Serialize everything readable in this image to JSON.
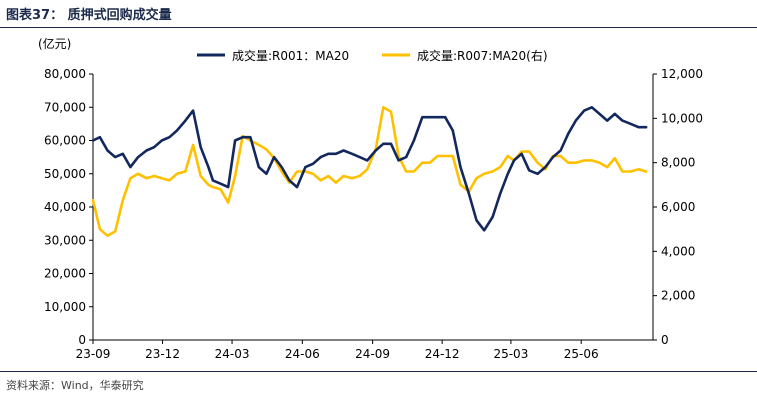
{
  "header": {
    "title": "图表37： 质押式回购成交量"
  },
  "footer": {
    "source": "资料来源：Wind，华泰研究"
  },
  "chart_data": {
    "type": "line",
    "y_left_unit": "(亿元)",
    "x_ticks": [
      "23-09",
      "23-12",
      "24-03",
      "24-06",
      "24-09",
      "24-12",
      "25-03",
      "25-06"
    ],
    "y_left": {
      "min": 0,
      "max": 80000,
      "ticks": [
        "0",
        "10,000",
        "20,000",
        "30,000",
        "40,000",
        "50,000",
        "60,000",
        "70,000",
        "80,000"
      ]
    },
    "y_right": {
      "min": 0,
      "max": 12000,
      "ticks": [
        "0",
        "2,000",
        "4,000",
        "6,000",
        "8,000",
        "10,000",
        "12,000"
      ]
    },
    "legend_position": "top",
    "series": [
      {
        "name": "成交量:R001：MA20",
        "axis": "left",
        "color": "#13285c",
        "x": [
          "2023-09-01",
          "2023-09-10",
          "2023-09-20",
          "2023-09-30",
          "2023-10-10",
          "2023-10-20",
          "2023-10-30",
          "2023-11-10",
          "2023-11-20",
          "2023-11-30",
          "2023-12-10",
          "2023-12-20",
          "2023-12-31",
          "2024-01-10",
          "2024-01-20",
          "2024-01-30",
          "2024-02-05",
          "2024-02-15",
          "2024-02-25",
          "2024-03-05",
          "2024-03-15",
          "2024-03-25",
          "2024-04-05",
          "2024-04-15",
          "2024-04-25",
          "2024-05-05",
          "2024-05-15",
          "2024-05-25",
          "2024-06-05",
          "2024-06-15",
          "2024-06-25",
          "2024-07-05",
          "2024-07-15",
          "2024-07-25",
          "2024-08-05",
          "2024-08-15",
          "2024-08-25",
          "2024-09-05",
          "2024-09-15",
          "2024-09-25",
          "2024-10-05",
          "2024-10-15",
          "2024-10-25",
          "2024-11-05",
          "2024-11-15",
          "2024-11-25",
          "2024-12-05",
          "2024-12-15",
          "2024-12-25",
          "2025-01-05",
          "2025-01-15",
          "2025-01-25",
          "2025-02-05",
          "2025-02-15",
          "2025-02-25",
          "2025-03-05",
          "2025-03-15",
          "2025-03-25",
          "2025-04-05",
          "2025-04-15",
          "2025-04-25",
          "2025-05-05",
          "2025-05-15",
          "2025-05-25",
          "2025-06-05",
          "2025-06-15",
          "2025-06-25",
          "2025-07-05",
          "2025-07-15",
          "2025-07-25",
          "2025-08-05",
          "2025-08-15",
          "2025-08-25"
        ],
        "values": [
          60000,
          61000,
          57000,
          55000,
          56000,
          52000,
          55000,
          57000,
          58000,
          60000,
          61000,
          63000,
          66000,
          69000,
          58000,
          52000,
          48000,
          47000,
          46000,
          60000,
          61000,
          61000,
          52000,
          50000,
          55000,
          52000,
          48000,
          46000,
          52000,
          53000,
          55000,
          56000,
          56000,
          57000,
          56000,
          55000,
          54000,
          57000,
          59000,
          59000,
          54000,
          55000,
          60000,
          67000,
          67000,
          67000,
          67000,
          63000,
          52000,
          44000,
          36000,
          33000,
          37000,
          44000,
          50000,
          54000,
          56000,
          51000,
          50000,
          52000,
          55000,
          57000,
          62000,
          66000,
          69000,
          70000,
          68000,
          66000,
          68000,
          66000,
          65000,
          64000,
          64000
        ]
      },
      {
        "name": "成交量:R007:MA20(右)",
        "axis": "right",
        "color": "#ffc000",
        "x": [
          "2023-09-01",
          "2023-09-10",
          "2023-09-20",
          "2023-09-30",
          "2023-10-10",
          "2023-10-20",
          "2023-10-30",
          "2023-11-10",
          "2023-11-20",
          "2023-11-30",
          "2023-12-10",
          "2023-12-20",
          "2023-12-31",
          "2024-01-10",
          "2024-01-20",
          "2024-01-30",
          "2024-02-05",
          "2024-02-15",
          "2024-02-25",
          "2024-03-05",
          "2024-03-15",
          "2024-03-25",
          "2024-04-05",
          "2024-04-15",
          "2024-04-25",
          "2024-05-05",
          "2024-05-15",
          "2024-05-25",
          "2024-06-05",
          "2024-06-15",
          "2024-06-25",
          "2024-07-05",
          "2024-07-15",
          "2024-07-25",
          "2024-08-05",
          "2024-08-15",
          "2024-08-25",
          "2024-09-05",
          "2024-09-15",
          "2024-09-25",
          "2024-10-05",
          "2024-10-15",
          "2024-10-25",
          "2024-11-05",
          "2024-11-15",
          "2024-11-25",
          "2024-12-05",
          "2024-12-15",
          "2024-12-25",
          "2025-01-05",
          "2025-01-15",
          "2025-01-25",
          "2025-02-05",
          "2025-02-15",
          "2025-02-25",
          "2025-03-05",
          "2025-03-15",
          "2025-03-25",
          "2025-04-05",
          "2025-04-15",
          "2025-04-25",
          "2025-05-05",
          "2025-05-15",
          "2025-05-25",
          "2025-06-05",
          "2025-06-15",
          "2025-06-25",
          "2025-07-05",
          "2025-07-15",
          "2025-07-25",
          "2025-08-05",
          "2025-08-15",
          "2025-08-25"
        ],
        "values": [
          6300,
          5000,
          4700,
          4900,
          6300,
          7300,
          7500,
          7300,
          7400,
          7300,
          7200,
          7500,
          7600,
          8800,
          7400,
          7000,
          6900,
          6800,
          6200,
          7400,
          9200,
          9000,
          8800,
          8600,
          8200,
          7600,
          7100,
          7600,
          7600,
          7500,
          7200,
          7400,
          7100,
          7400,
          7300,
          7400,
          7700,
          8600,
          10500,
          10300,
          8300,
          7600,
          7600,
          8000,
          8000,
          8300,
          8300,
          8300,
          7000,
          6700,
          7300,
          7500,
          7600,
          7800,
          8300,
          8100,
          8500,
          8500,
          8000,
          7700,
          8300,
          8300,
          8000,
          8000,
          8100,
          8100,
          8000,
          7800,
          8200,
          7600,
          7600,
          7700,
          7600
        ]
      }
    ]
  }
}
